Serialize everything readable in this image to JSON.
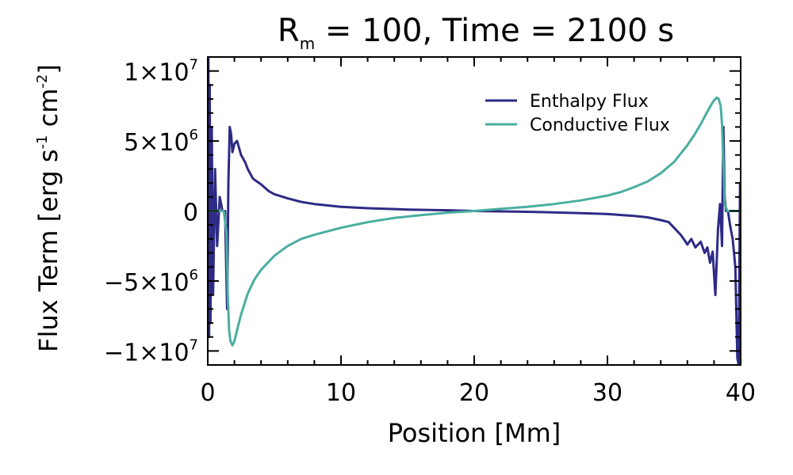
{
  "chart_data": {
    "type": "line",
    "title": {
      "parts": [
        "R",
        "m",
        " = 100, Time = 2100 s"
      ],
      "text": "Rm = 100, Time = 2100 s"
    },
    "xlabel": "Position [Mm]",
    "ylabel": {
      "parts": [
        "Flux Term [erg s",
        "-1",
        " cm",
        "-2",
        "]"
      ],
      "text": "Flux Term [erg s^-1 cm^-2]"
    },
    "xlim": [
      0,
      40
    ],
    "ylim": [
      -11000000,
      11000000
    ],
    "x_ticks": [
      {
        "value": 0,
        "label": "0"
      },
      {
        "value": 10,
        "label": "10"
      },
      {
        "value": 20,
        "label": "20"
      },
      {
        "value": 30,
        "label": "30"
      },
      {
        "value": 40,
        "label": "40"
      }
    ],
    "y_ticks": [
      {
        "value": 10000000,
        "mantissa": "1×10",
        "exponent": "7"
      },
      {
        "value": 5000000,
        "mantissa": "5×10",
        "exponent": "6"
      },
      {
        "value": 0,
        "mantissa": "0",
        "exponent": ""
      },
      {
        "value": -5000000,
        "mantissa": "−5×10",
        "exponent": "6"
      },
      {
        "value": -10000000,
        "mantissa": "−1×10",
        "exponent": "7"
      }
    ],
    "legend": {
      "position": "top-right"
    },
    "colors": {
      "axes": "#000000"
    },
    "series": [
      {
        "name": "Enthalpy Flux",
        "color": "#2e2a86",
        "x": [
          0.0,
          0.05,
          0.1,
          0.15,
          0.2,
          0.3,
          0.4,
          0.55,
          0.7,
          0.9,
          1.1,
          1.3,
          1.45,
          1.55,
          1.65,
          1.75,
          1.85,
          2.0,
          2.2,
          2.5,
          2.8,
          3.0,
          3.4,
          4.0,
          4.6,
          5.0,
          6.0,
          7.0,
          8.0,
          10.0,
          12.0,
          15.0,
          18.0,
          20.0,
          22.0,
          25.0,
          28.0,
          30.0,
          32.0,
          33.0,
          34.0,
          34.6,
          35.0,
          35.5,
          35.8,
          36.0,
          36.3,
          36.6,
          37.0,
          37.3,
          37.5,
          37.7,
          37.9,
          38.1,
          38.3,
          38.45,
          38.6,
          38.7,
          38.8,
          38.9,
          39.05,
          39.2,
          39.4,
          39.6,
          39.75,
          39.85,
          39.95,
          40.0
        ],
        "y": [
          0,
          11000000,
          -9000000,
          9000000,
          -8000000,
          6000000,
          -6000000,
          3000000,
          -2500000,
          1000000,
          0,
          0,
          -7000000,
          2000000,
          6000000,
          5500000,
          4200000,
          4800000,
          5000000,
          4000000,
          3500000,
          3000000,
          2300000,
          1900000,
          1400000,
          1200000,
          900000,
          650000,
          500000,
          300000,
          200000,
          100000,
          50000,
          0,
          -30000,
          -80000,
          -150000,
          -220000,
          -350000,
          -450000,
          -650000,
          -800000,
          -1200000,
          -1700000,
          -2100000,
          -2400000,
          -2000000,
          -2600000,
          -2200000,
          -3000000,
          -2600000,
          -3700000,
          -2900000,
          -6000000,
          -1300000,
          500000,
          -2500000,
          6000000,
          1000000,
          0,
          0,
          -1000000,
          -2000000,
          -4000000,
          -10500000,
          -11000000,
          2000000,
          0
        ]
      },
      {
        "name": "Conductive Flux",
        "color": "#4aaea0",
        "x": [
          0.0,
          1.2,
          1.4,
          1.5,
          1.6,
          1.7,
          1.85,
          2.0,
          2.2,
          2.5,
          3.0,
          3.5,
          4.0,
          5.0,
          6.0,
          7.0,
          8.0,
          10.0,
          12.0,
          14.0,
          16.0,
          18.0,
          20.0,
          22.0,
          24.0,
          26.0,
          28.0,
          30.0,
          31.0,
          32.0,
          33.0,
          34.0,
          35.0,
          36.0,
          36.5,
          37.0,
          37.5,
          37.8,
          38.0,
          38.2,
          38.35,
          38.5,
          38.6,
          38.7,
          38.8,
          39.0,
          39.5,
          40.0
        ],
        "y": [
          0,
          0,
          -1500000,
          -6000000,
          -8500000,
          -9300000,
          -9600000,
          -9300000,
          -8500000,
          -7400000,
          -5900000,
          -4900000,
          -4200000,
          -3200000,
          -2500000,
          -2000000,
          -1700000,
          -1200000,
          -800000,
          -500000,
          -300000,
          -120000,
          0,
          150000,
          300000,
          500000,
          750000,
          1100000,
          1350000,
          1700000,
          2100000,
          2700000,
          3500000,
          4700000,
          5400000,
          6200000,
          7100000,
          7600000,
          7900000,
          8100000,
          8000000,
          7500000,
          6200000,
          3500000,
          500000,
          0,
          0,
          0
        ]
      }
    ]
  }
}
